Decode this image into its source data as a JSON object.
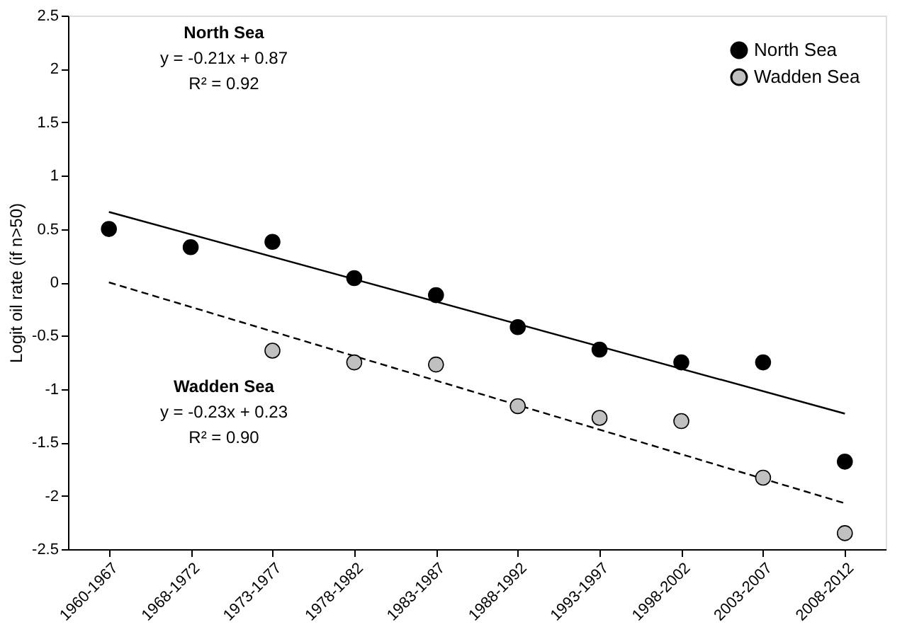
{
  "chart_data": {
    "type": "scatter",
    "ylabel": "Logit oil rate (if n>50)",
    "categories": [
      "1960-1967",
      "1968-1972",
      "1973-1977",
      "1978-1982",
      "1983-1987",
      "1988-1992",
      "1993-1997",
      "1998-2002",
      "2003-2007",
      "2008-2012"
    ],
    "series": [
      {
        "name": "North Sea",
        "color": "#000000",
        "values": [
          0.5,
          0.33,
          0.38,
          0.04,
          -0.12,
          -0.42,
          -0.63,
          -0.75,
          -0.75,
          -1.68
        ]
      },
      {
        "name": "Wadden Sea",
        "color": "#c0c0c0",
        "values": [
          null,
          null,
          -0.64,
          -0.75,
          -0.77,
          -1.16,
          -1.27,
          -1.3,
          -1.83,
          -2.35
        ]
      },
      {
        "type": "line",
        "color": "#000000",
        "line_style": "solid",
        "marker": "none",
        "x": [
          "1960-1967",
          "2008-2012"
        ],
        "values": [
          0.66,
          -1.23
        ]
      },
      {
        "type": "line",
        "color": "#000000",
        "line_style": "dashed",
        "marker": "none",
        "x": [
          "1960-1967",
          "2008-2012"
        ],
        "values": [
          0.0,
          -2.07
        ]
      }
    ],
    "ylim": [
      -2.5,
      2.5
    ],
    "yticks": [
      -2.5,
      -2,
      -1.5,
      -1,
      -0.5,
      0,
      0.5,
      1,
      1.5,
      2,
      2.5
    ],
    "annotations": [
      "North Sea",
      "y = -0.21x + 0.87",
      "R² = 0.92",
      "Wadden Sea",
      "y = -0.23x + 0.23",
      "R² = 0.90"
    ],
    "marker": "circle",
    "legend": "top right",
    "grid": false
  }
}
